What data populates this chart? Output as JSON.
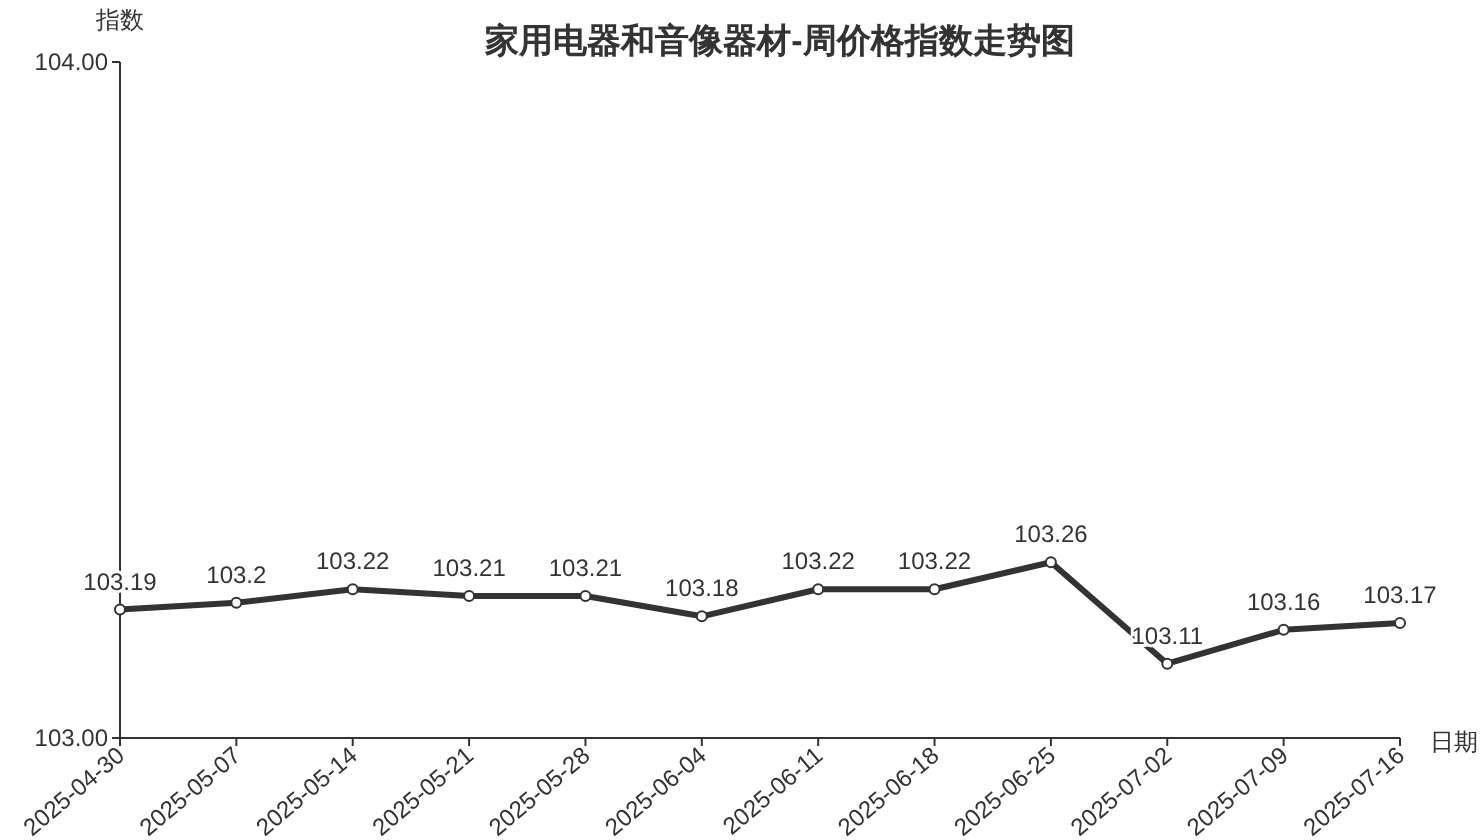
{
  "chart_data": {
    "type": "line",
    "title": "家用电器和音像器材-周价格指数走势图",
    "xlabel": "日期",
    "ylabel": "指数",
    "categories": [
      "2025-04-30",
      "2025-05-07",
      "2025-05-14",
      "2025-05-21",
      "2025-05-28",
      "2025-06-04",
      "2025-06-11",
      "2025-06-18",
      "2025-06-25",
      "2025-07-02",
      "2025-07-09",
      "2025-07-16"
    ],
    "series": [
      {
        "color": "#333333",
        "values": [
          103.19,
          103.2,
          103.22,
          103.21,
          103.21,
          103.18,
          103.22,
          103.22,
          103.26,
          103.11,
          103.16,
          103.17
        ]
      }
    ],
    "ylim": [
      103,
      104
    ],
    "yticks": [
      {
        "value": 103,
        "label": "103.00"
      },
      {
        "value": 104,
        "label": "104.00"
      }
    ],
    "data_labels": true,
    "marker": "circle",
    "line_style": "solid",
    "grid": false
  }
}
